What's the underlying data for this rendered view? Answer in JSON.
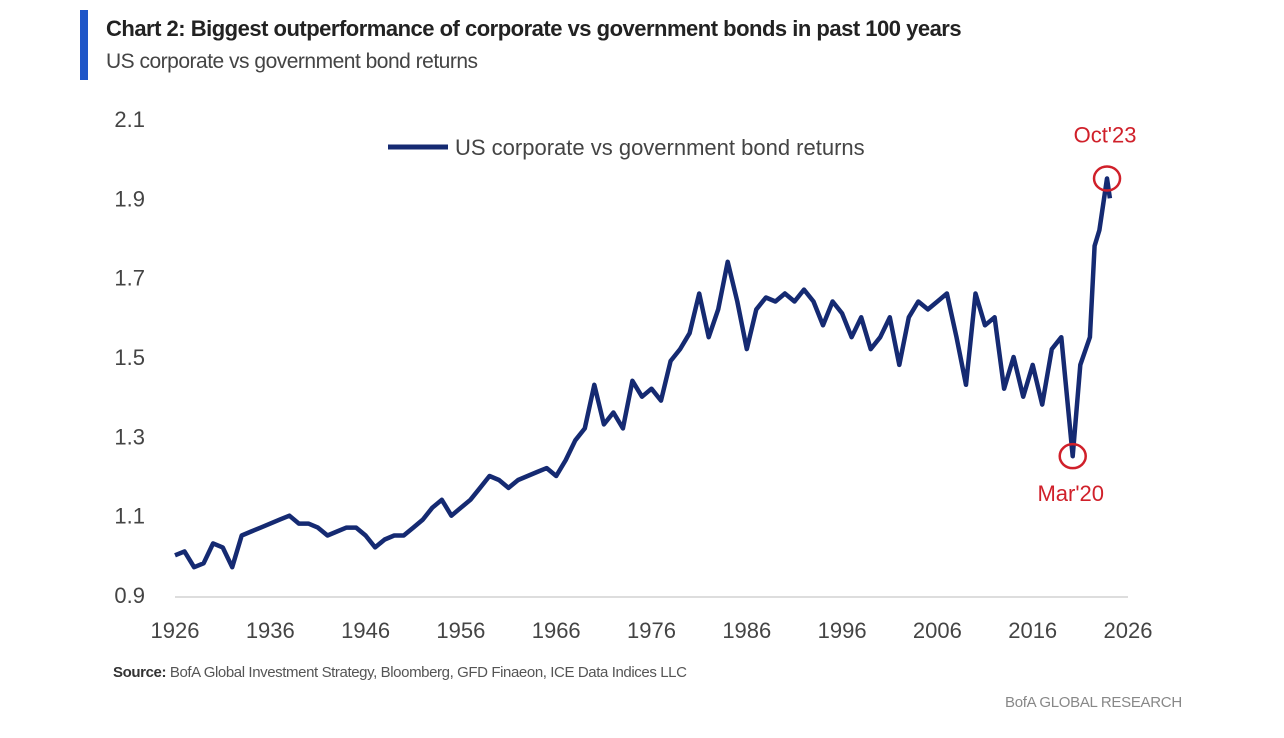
{
  "header": {
    "title": "Chart 2: Biggest outperformance of corporate vs government bonds in past 100 years",
    "subtitle": "US corporate vs government bond returns"
  },
  "footer": {
    "source_label": "Source:",
    "source_text": "BofA Global Investment Strategy, Bloomberg, GFD Finaeon, ICE Data Indices LLC",
    "brand": "BofA GLOBAL RESEARCH"
  },
  "colors": {
    "line": "#152a72",
    "accent_bar": "#1f56c8",
    "annotation": "#d0202a"
  },
  "chart_data": {
    "type": "line",
    "title": "Chart 2: Biggest outperformance of corporate vs government bonds in past 100 years",
    "xlabel": "",
    "ylabel": "",
    "xlim": [
      1926,
      2026
    ],
    "ylim": [
      0.9,
      2.1
    ],
    "x_ticks": [
      "1926",
      "1936",
      "1946",
      "1956",
      "1966",
      "1976",
      "1986",
      "1996",
      "2006",
      "2016",
      "2026"
    ],
    "y_ticks": [
      "0.9",
      "1.1",
      "1.3",
      "1.5",
      "1.7",
      "1.9",
      "2.1"
    ],
    "grid": false,
    "legend_position": "top-center",
    "series": [
      {
        "name": "US corporate vs government bond returns",
        "x": [
          1926,
          1927,
          1928,
          1929,
          1930,
          1931,
          1932,
          1933,
          1934,
          1935,
          1936,
          1937,
          1938,
          1939,
          1940,
          1941,
          1942,
          1943,
          1944,
          1945,
          1946,
          1947,
          1948,
          1949,
          1950,
          1951,
          1952,
          1953,
          1954,
          1955,
          1956,
          1957,
          1958,
          1959,
          1960,
          1961,
          1962,
          1963,
          1964,
          1965,
          1966,
          1967,
          1968,
          1969,
          1970,
          1971,
          1972,
          1973,
          1974,
          1975,
          1976,
          1977,
          1978,
          1979,
          1980,
          1981,
          1982,
          1983,
          1984,
          1985,
          1986,
          1987,
          1988,
          1989,
          1990,
          1991,
          1992,
          1993,
          1994,
          1995,
          1996,
          1997,
          1998,
          1999,
          2000,
          2001,
          2002,
          2003,
          2004,
          2005,
          2006,
          2007,
          2008,
          2009,
          2010,
          2011,
          2012,
          2013,
          2014,
          2015,
          2016,
          2017,
          2018,
          2019,
          2020.2,
          2021,
          2022,
          2022.5,
          2023,
          2023.8,
          2024.1
        ],
        "y": [
          1.0,
          1.01,
          0.97,
          0.98,
          1.03,
          1.02,
          0.97,
          1.05,
          1.06,
          1.07,
          1.08,
          1.09,
          1.1,
          1.08,
          1.08,
          1.07,
          1.05,
          1.06,
          1.07,
          1.07,
          1.05,
          1.02,
          1.04,
          1.05,
          1.05,
          1.07,
          1.09,
          1.12,
          1.14,
          1.1,
          1.12,
          1.14,
          1.17,
          1.2,
          1.19,
          1.17,
          1.19,
          1.2,
          1.21,
          1.22,
          1.2,
          1.24,
          1.29,
          1.32,
          1.43,
          1.33,
          1.36,
          1.32,
          1.44,
          1.4,
          1.42,
          1.39,
          1.49,
          1.52,
          1.56,
          1.66,
          1.55,
          1.62,
          1.74,
          1.64,
          1.52,
          1.62,
          1.65,
          1.64,
          1.66,
          1.64,
          1.67,
          1.64,
          1.58,
          1.64,
          1.61,
          1.55,
          1.6,
          1.52,
          1.55,
          1.6,
          1.48,
          1.6,
          1.64,
          1.62,
          1.64,
          1.66,
          1.55,
          1.43,
          1.66,
          1.58,
          1.6,
          1.42,
          1.5,
          1.4,
          1.48,
          1.38,
          1.52,
          1.55,
          1.25,
          1.48,
          1.55,
          1.78,
          1.82,
          1.95,
          1.9
        ]
      }
    ],
    "annotations": [
      {
        "label": "Oct'23",
        "x": 2023.8,
        "y": 1.95
      },
      {
        "label": "Mar'20",
        "x": 2020.2,
        "y": 1.25
      }
    ]
  }
}
